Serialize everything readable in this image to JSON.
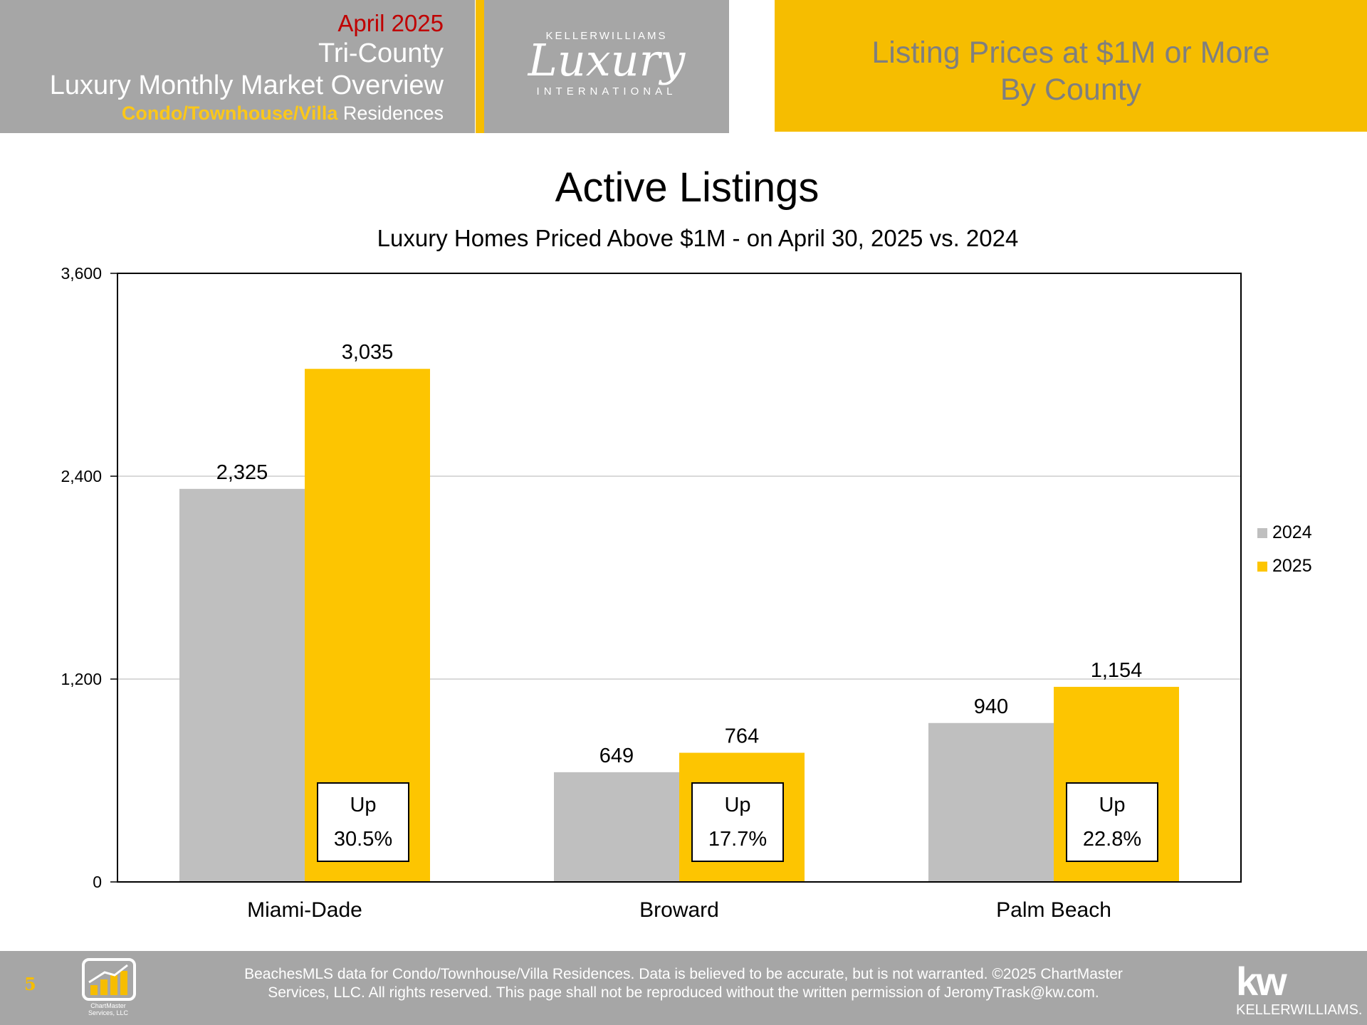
{
  "header": {
    "month": "April 2025",
    "region": "Tri-County",
    "report": "Luxury Monthly Market Overview",
    "segment_highlight": "Condo/Townhouse/Villa",
    "segment_rest": "Residences",
    "logo_top": "KELLERWILLIAMS",
    "logo_main": "Luxury",
    "logo_bottom": "INTERNATIONAL",
    "banner_line1": "Listing Prices at $1M or More",
    "banner_line2": "By County"
  },
  "colors": {
    "gray_bar": "#bfbfbf",
    "gold_bar": "#fdc501",
    "header_gray": "#a6a6a6",
    "accent_gold": "#f6bd00",
    "month_red": "#c00000"
  },
  "chart_data": {
    "type": "bar",
    "title": "Active Listings",
    "subtitle": "Luxury Homes Priced Above $1M - on April 30,  2025 vs. 2024",
    "categories": [
      "Miami-Dade",
      "Broward",
      "Palm Beach"
    ],
    "series": [
      {
        "name": "2024",
        "values": [
          2325,
          649,
          940
        ],
        "labels": [
          "2,325",
          "649",
          "940"
        ]
      },
      {
        "name": "2025",
        "values": [
          3035,
          764,
          1154
        ],
        "labels": [
          "3,035",
          "764",
          "1,154"
        ]
      }
    ],
    "ylim": [
      0,
      3600
    ],
    "yticks": [
      0,
      1200,
      2400,
      3600
    ],
    "ytick_labels": [
      "0",
      "1,200",
      "2,400",
      "3,600"
    ],
    "grid": true,
    "legend": "right",
    "annotations": [
      {
        "line1": "Up",
        "line2": "30.5%"
      },
      {
        "line1": "Up",
        "line2": "17.7%"
      },
      {
        "line1": "Up",
        "line2": "22.8%"
      }
    ]
  },
  "footer": {
    "page_number": "5",
    "chartmaster_line1": "ChartMaster",
    "chartmaster_line2": "Services, LLC",
    "disclaimer_line1": "BeachesMLS data for Condo/Townhouse/Villa Residences.  Data is believed to be accurate, but is not warranted.   ©2025  ChartMaster",
    "disclaimer_line2": "Services, LLC.  All rights reserved. This page shall not be reproduced without the written permission of JeromyTrask@kw.com.",
    "kw_mark": "kw",
    "kw_name": "KELLERWILLIAMS."
  }
}
